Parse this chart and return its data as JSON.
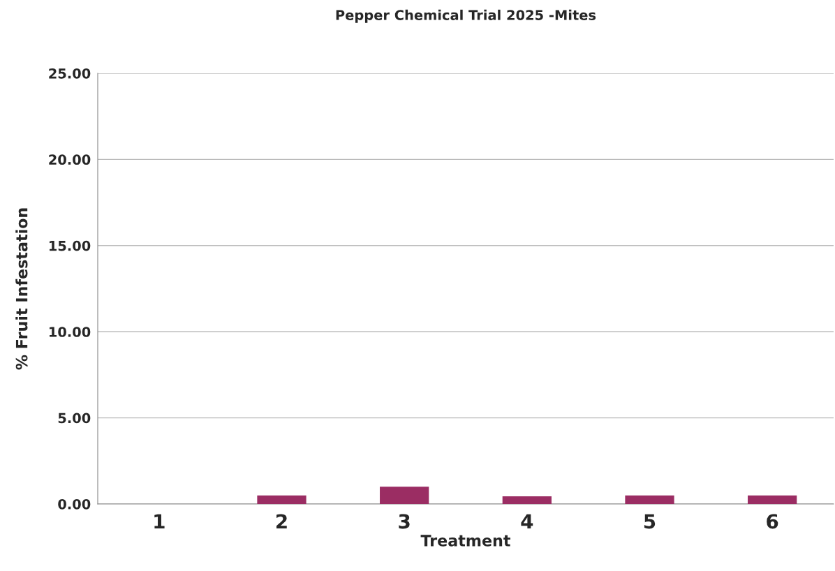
{
  "chart_data": {
    "type": "bar",
    "title": "Pepper Chemical Trial 2025 -Mites",
    "xlabel": "Treatment",
    "ylabel": "% Fruit Infestation",
    "categories": [
      "1",
      "2",
      "3",
      "4",
      "5",
      "6"
    ],
    "values": [
      0,
      0.5,
      1.0,
      0.45,
      0.5,
      0.5
    ],
    "color": "#9b2d63",
    "ylim": [
      0,
      25
    ],
    "yticks": [
      {
        "value": 0,
        "label": "0.00"
      },
      {
        "value": 5,
        "label": "5.00"
      },
      {
        "value": 10,
        "label": "10.00"
      },
      {
        "value": 15,
        "label": "15.00"
      },
      {
        "value": 20,
        "label": "20.00"
      },
      {
        "value": 25,
        "label": "25.00"
      }
    ],
    "grid": "y"
  }
}
